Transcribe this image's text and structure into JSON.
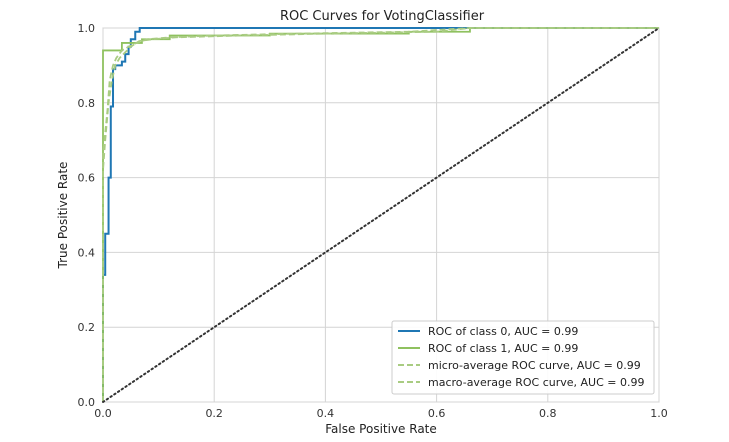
{
  "chart_data": {
    "type": "line",
    "title": "ROC Curves for VotingClassifier",
    "xlabel": "False Positive Rate",
    "ylabel": "True Positive Rate",
    "xlim": [
      0.0,
      1.0
    ],
    "ylim": [
      0.0,
      1.0
    ],
    "xticks": [
      "0.0",
      "0.2",
      "0.4",
      "0.6",
      "0.8",
      "1.0"
    ],
    "yticks": [
      "0.0",
      "0.2",
      "0.4",
      "0.6",
      "0.8",
      "1.0"
    ],
    "grid": true,
    "legend_position": "lower-right",
    "series": [
      {
        "name": "ROC of class 0, AUC = 0.99",
        "color": "#1f77b4",
        "style": "solid",
        "x": [
          0.0,
          0.0,
          0.004,
          0.004,
          0.01,
          0.01,
          0.014,
          0.014,
          0.018,
          0.018,
          0.022,
          0.022,
          0.034,
          0.034,
          0.04,
          0.04,
          0.046,
          0.046,
          0.05,
          0.05,
          0.058,
          0.058,
          0.066,
          0.066,
          1.0
        ],
        "y": [
          0.0,
          0.34,
          0.34,
          0.45,
          0.45,
          0.6,
          0.6,
          0.79,
          0.79,
          0.89,
          0.89,
          0.9,
          0.9,
          0.91,
          0.91,
          0.93,
          0.93,
          0.95,
          0.95,
          0.97,
          0.97,
          0.99,
          0.99,
          1.0,
          1.0
        ]
      },
      {
        "name": "ROC of class 1, AUC = 0.99",
        "color": "#8fc15f",
        "style": "solid",
        "x": [
          0.0,
          0.0,
          0.034,
          0.034,
          0.07,
          0.07,
          0.12,
          0.12,
          0.3,
          0.3,
          0.55,
          0.55,
          0.66,
          0.66,
          1.0
        ],
        "y": [
          0.0,
          0.94,
          0.94,
          0.96,
          0.96,
          0.97,
          0.97,
          0.98,
          0.98,
          0.985,
          0.985,
          0.99,
          0.99,
          1.0,
          1.0
        ]
      },
      {
        "name": "micro-average ROC curve, AUC = 0.99",
        "color": "#a9cc82",
        "style": "dashed",
        "x": [
          0.0,
          0.0,
          0.004,
          0.008,
          0.012,
          0.018,
          0.024,
          0.034,
          0.046,
          0.06,
          0.08,
          0.12,
          0.2,
          0.35,
          0.55,
          0.66,
          1.0
        ],
        "y": [
          0.0,
          0.66,
          0.72,
          0.78,
          0.86,
          0.9,
          0.92,
          0.94,
          0.95,
          0.96,
          0.97,
          0.975,
          0.98,
          0.985,
          0.99,
          1.0,
          1.0
        ]
      },
      {
        "name": "macro-average ROC curve, AUC = 0.99",
        "color": "#a9cc82",
        "style": "dashed",
        "x": [
          0.0,
          0.0,
          0.004,
          0.01,
          0.016,
          0.022,
          0.03,
          0.04,
          0.05,
          0.065,
          0.09,
          0.13,
          0.25,
          0.4,
          0.6,
          0.66,
          1.0
        ],
        "y": [
          0.0,
          0.62,
          0.7,
          0.8,
          0.86,
          0.9,
          0.92,
          0.935,
          0.95,
          0.965,
          0.97,
          0.975,
          0.98,
          0.985,
          0.99,
          1.0,
          1.0
        ]
      }
    ],
    "reference_line": {
      "x": [
        0.0,
        1.0
      ],
      "y": [
        0.0,
        1.0
      ],
      "color": "#333333",
      "style": "dotted"
    }
  }
}
